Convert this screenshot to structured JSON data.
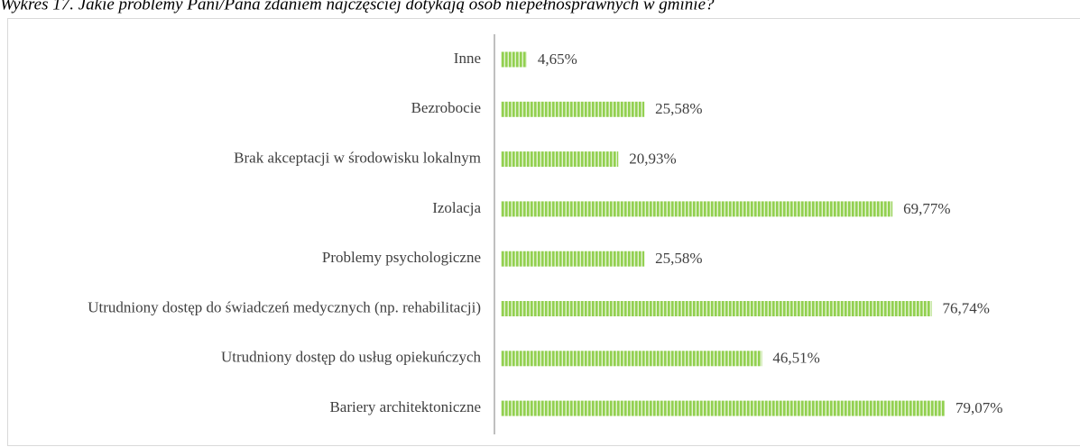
{
  "chart_data": {
    "type": "bar",
    "title": "Wykres 17. Jakie problemy Pani/Pana zdaniem najczęściej dotykają osób niepełnosprawnych w gminie?",
    "categories": [
      "Inne",
      "Bezrobocie",
      "Brak akceptacji w środowisku lokalnym",
      "Izolacja",
      "Problemy psychologiczne",
      "Utrudniony dostęp do świadczeń medycznych (np. rehabilitacji)",
      "Utrudniony dostęp do usług opiekuńczych",
      "Bariery architektoniczne"
    ],
    "values": [
      4.65,
      25.58,
      20.93,
      69.77,
      25.58,
      76.74,
      46.51,
      79.07
    ],
    "value_labels": [
      "4,65%",
      "25,58%",
      "20,93%",
      "69,77%",
      "25,58%",
      "76,74%",
      "46,51%",
      "79,07%"
    ],
    "color": "#92d050"
  }
}
